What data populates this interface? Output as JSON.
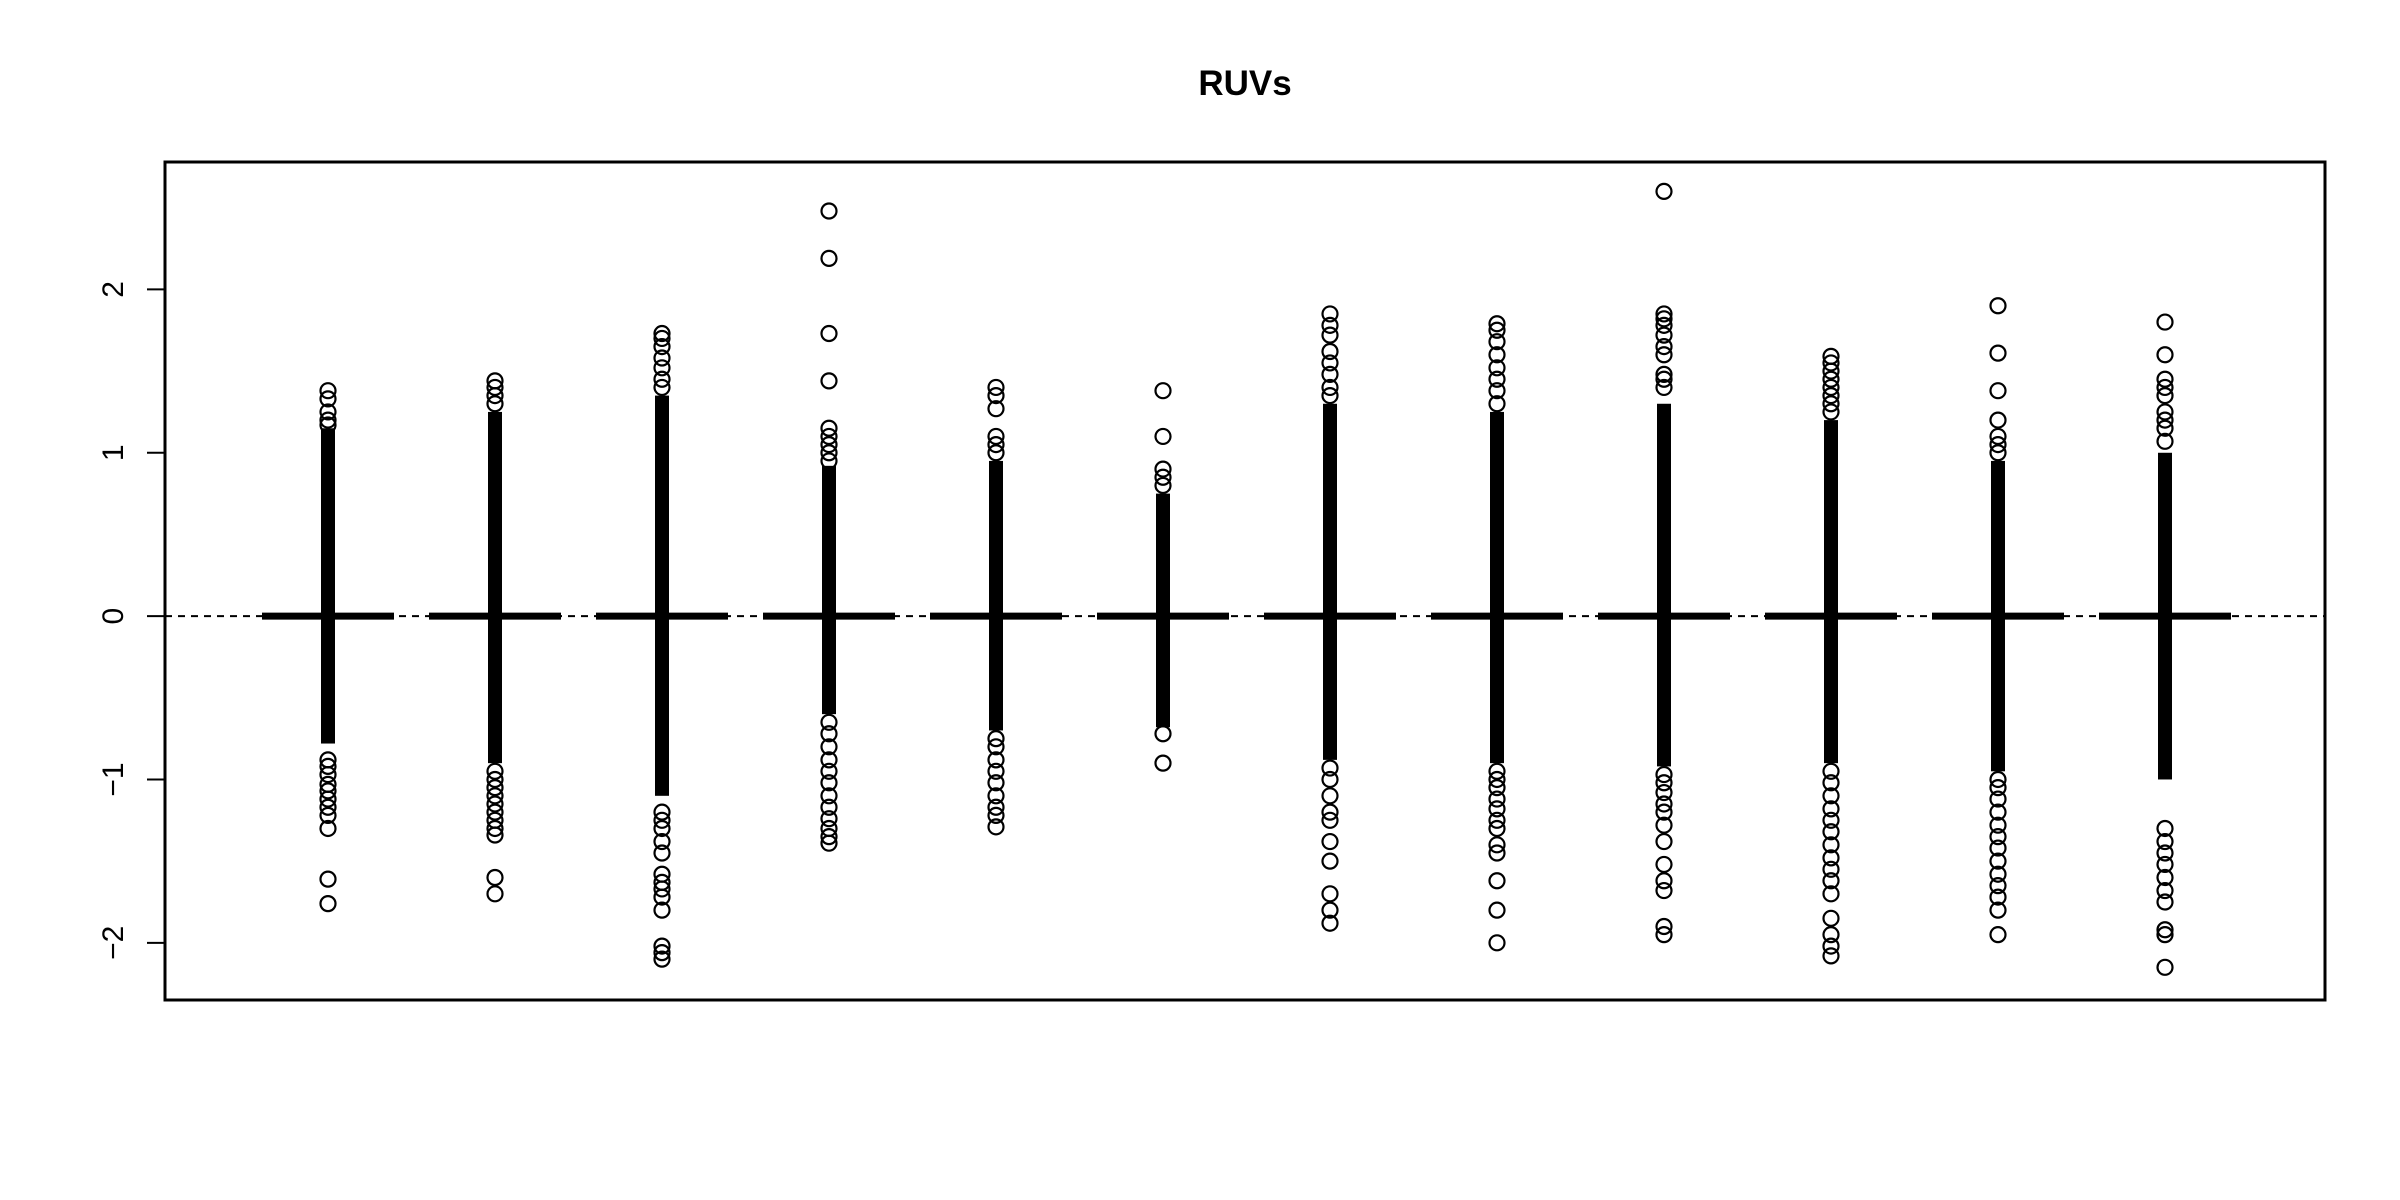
{
  "chart_data": {
    "type": "boxplot",
    "title": "RUVs",
    "xlabel": "",
    "ylabel": "",
    "ylim": [
      -2.35,
      2.78
    ],
    "y_ticks": [
      {
        "value": -2,
        "label": "−2"
      },
      {
        "value": -1,
        "label": "−1"
      },
      {
        "value": 0,
        "label": "0"
      },
      {
        "value": 1,
        "label": "1"
      },
      {
        "value": 2,
        "label": "2"
      }
    ],
    "x_axis_drawn": false,
    "reference_line": {
      "y": 0,
      "style": "dashed"
    },
    "grid": false,
    "colors": {
      "ink": "#000000",
      "background": "#ffffff"
    },
    "boxes": [
      {
        "index": 1,
        "median": 0,
        "q1": 0,
        "q3": 0,
        "dense_range": [
          -0.78,
          1.15
        ],
        "outliers": [
          1.38,
          1.33,
          1.25,
          1.2,
          1.17,
          -0.88,
          -0.92,
          -0.97,
          -1.03,
          -1.07,
          -1.12,
          -1.17,
          -1.22,
          -1.3,
          -1.61,
          -1.76
        ]
      },
      {
        "index": 2,
        "median": 0,
        "q1": 0,
        "q3": 0,
        "dense_range": [
          -0.9,
          1.25
        ],
        "outliers": [
          1.44,
          1.4,
          1.35,
          1.3,
          -0.95,
          -1.0,
          -1.05,
          -1.1,
          -1.15,
          -1.2,
          -1.25,
          -1.3,
          -1.34,
          -1.6,
          -1.7
        ]
      },
      {
        "index": 3,
        "median": 0,
        "q1": 0,
        "q3": 0,
        "dense_range": [
          -1.1,
          1.35
        ],
        "outliers": [
          1.73,
          1.7,
          1.65,
          1.58,
          1.52,
          1.45,
          1.4,
          -1.2,
          -1.25,
          -1.3,
          -1.38,
          -1.45,
          -1.58,
          -1.63,
          -1.67,
          -1.72,
          -1.8,
          -2.02,
          -2.06,
          -2.1
        ]
      },
      {
        "index": 4,
        "median": 0,
        "q1": 0,
        "q3": 0,
        "dense_range": [
          -0.6,
          0.92
        ],
        "outliers": [
          2.48,
          2.19,
          1.73,
          1.44,
          1.15,
          1.1,
          1.05,
          1.0,
          0.95,
          -0.65,
          -0.72,
          -0.8,
          -0.88,
          -0.95,
          -1.02,
          -1.1,
          -1.17,
          -1.24,
          -1.3,
          -1.35,
          -1.39
        ]
      },
      {
        "index": 5,
        "median": 0,
        "q1": 0,
        "q3": 0,
        "dense_range": [
          -0.7,
          0.95
        ],
        "outliers": [
          1.4,
          1.35,
          1.27,
          1.1,
          1.05,
          1.0,
          -0.75,
          -0.8,
          -0.88,
          -0.95,
          -1.02,
          -1.1,
          -1.17,
          -1.22,
          -1.29
        ]
      },
      {
        "index": 6,
        "median": 0,
        "q1": 0,
        "q3": 0,
        "dense_range": [
          -0.68,
          0.75
        ],
        "outliers": [
          1.38,
          1.1,
          0.9,
          0.85,
          0.8,
          -0.72,
          -0.9
        ]
      },
      {
        "index": 7,
        "median": 0,
        "q1": 0,
        "q3": 0,
        "dense_range": [
          -0.88,
          1.3
        ],
        "outliers": [
          1.85,
          1.78,
          1.72,
          1.62,
          1.55,
          1.48,
          1.4,
          1.35,
          -0.93,
          -1.0,
          -1.1,
          -1.2,
          -1.25,
          -1.38,
          -1.5,
          -1.7,
          -1.8,
          -1.88
        ]
      },
      {
        "index": 8,
        "median": 0,
        "q1": 0,
        "q3": 0,
        "dense_range": [
          -0.9,
          1.25
        ],
        "outliers": [
          1.79,
          1.75,
          1.68,
          1.6,
          1.52,
          1.45,
          1.38,
          1.3,
          -0.95,
          -1.0,
          -1.05,
          -1.12,
          -1.18,
          -1.25,
          -1.3,
          -1.4,
          -1.45,
          -1.62,
          -1.8,
          -2.0
        ]
      },
      {
        "index": 9,
        "median": 0,
        "q1": 0,
        "q3": 0,
        "dense_range": [
          -0.92,
          1.3
        ],
        "outliers": [
          2.6,
          1.85,
          1.82,
          1.78,
          1.72,
          1.65,
          1.6,
          1.48,
          1.45,
          1.4,
          -0.97,
          -1.02,
          -1.08,
          -1.15,
          -1.2,
          -1.28,
          -1.38,
          -1.52,
          -1.62,
          -1.68,
          -1.9,
          -1.95
        ]
      },
      {
        "index": 10,
        "median": 0,
        "q1": 0,
        "q3": 0,
        "dense_range": [
          -0.9,
          1.2
        ],
        "outliers": [
          1.59,
          1.55,
          1.5,
          1.45,
          1.4,
          1.35,
          1.3,
          1.25,
          -0.95,
          -1.02,
          -1.1,
          -1.18,
          -1.25,
          -1.32,
          -1.4,
          -1.48,
          -1.55,
          -1.62,
          -1.7,
          -1.85,
          -1.95,
          -2.02,
          -2.08
        ]
      },
      {
        "index": 11,
        "median": 0,
        "q1": 0,
        "q3": 0,
        "dense_range": [
          -0.95,
          0.95
        ],
        "outliers": [
          1.9,
          1.61,
          1.38,
          1.2,
          1.1,
          1.05,
          1.0,
          -1.0,
          -1.05,
          -1.12,
          -1.2,
          -1.28,
          -1.35,
          -1.42,
          -1.5,
          -1.58,
          -1.65,
          -1.72,
          -1.8,
          -1.95
        ]
      },
      {
        "index": 12,
        "median": 0,
        "q1": 0,
        "q3": 0,
        "dense_range": [
          -1.0,
          1.0
        ],
        "outliers": [
          1.8,
          1.6,
          1.45,
          1.4,
          1.35,
          1.25,
          1.2,
          1.15,
          1.07,
          -1.3,
          -1.38,
          -1.45,
          -1.52,
          -1.6,
          -1.68,
          -1.75,
          -1.92,
          -1.95,
          -2.15
        ]
      }
    ]
  }
}
